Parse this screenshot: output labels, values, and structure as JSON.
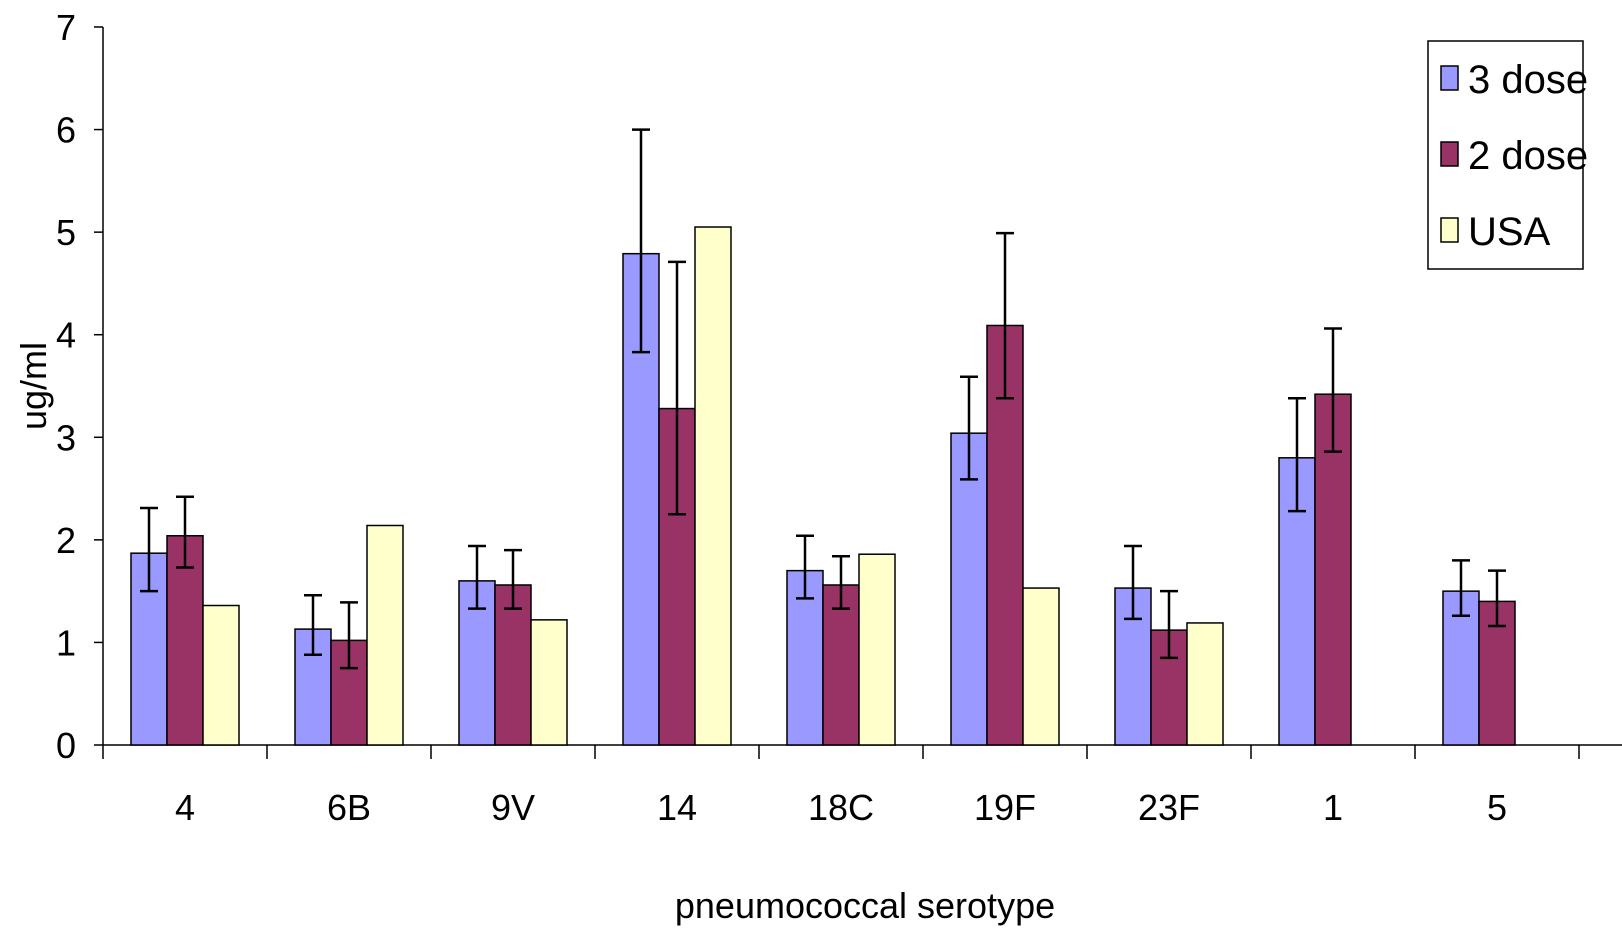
{
  "chart_data": {
    "type": "bar",
    "title": "",
    "xlabel": "pneumococcal serotype",
    "ylabel": "ug/ml",
    "ylim": [
      0,
      7
    ],
    "yticks": [
      "0",
      "1",
      "2",
      "3",
      "4",
      "5",
      "6",
      "7"
    ],
    "categories": [
      "4",
      "6B",
      "9V",
      "14",
      "18C",
      "19F",
      "23F",
      "1",
      "5"
    ],
    "grid": false,
    "legend_position": "top-right",
    "series": [
      {
        "name": "3 dose",
        "color": "#9999ff",
        "values": [
          1.87,
          1.13,
          1.6,
          4.79,
          1.7,
          3.04,
          1.53,
          2.8,
          1.5
        ],
        "error_upper": [
          2.31,
          1.46,
          1.94,
          6.0,
          2.04,
          3.59,
          1.94,
          3.38,
          1.8
        ],
        "error_lower": [
          1.5,
          0.88,
          1.33,
          3.83,
          1.43,
          2.59,
          1.23,
          2.28,
          1.26
        ]
      },
      {
        "name": "2 dose",
        "color": "#993366",
        "values": [
          2.04,
          1.02,
          1.56,
          3.28,
          1.56,
          4.09,
          1.12,
          3.42,
          1.4
        ],
        "error_upper": [
          2.42,
          1.39,
          1.9,
          4.71,
          1.84,
          4.99,
          1.5,
          4.06,
          1.7
        ],
        "error_lower": [
          1.73,
          0.75,
          1.33,
          2.25,
          1.33,
          3.38,
          0.85,
          2.86,
          1.16
        ]
      },
      {
        "name": "USA",
        "color": "#ffffcc",
        "values": [
          1.36,
          2.14,
          1.22,
          5.05,
          1.86,
          1.53,
          1.19,
          null,
          null
        ]
      }
    ]
  }
}
